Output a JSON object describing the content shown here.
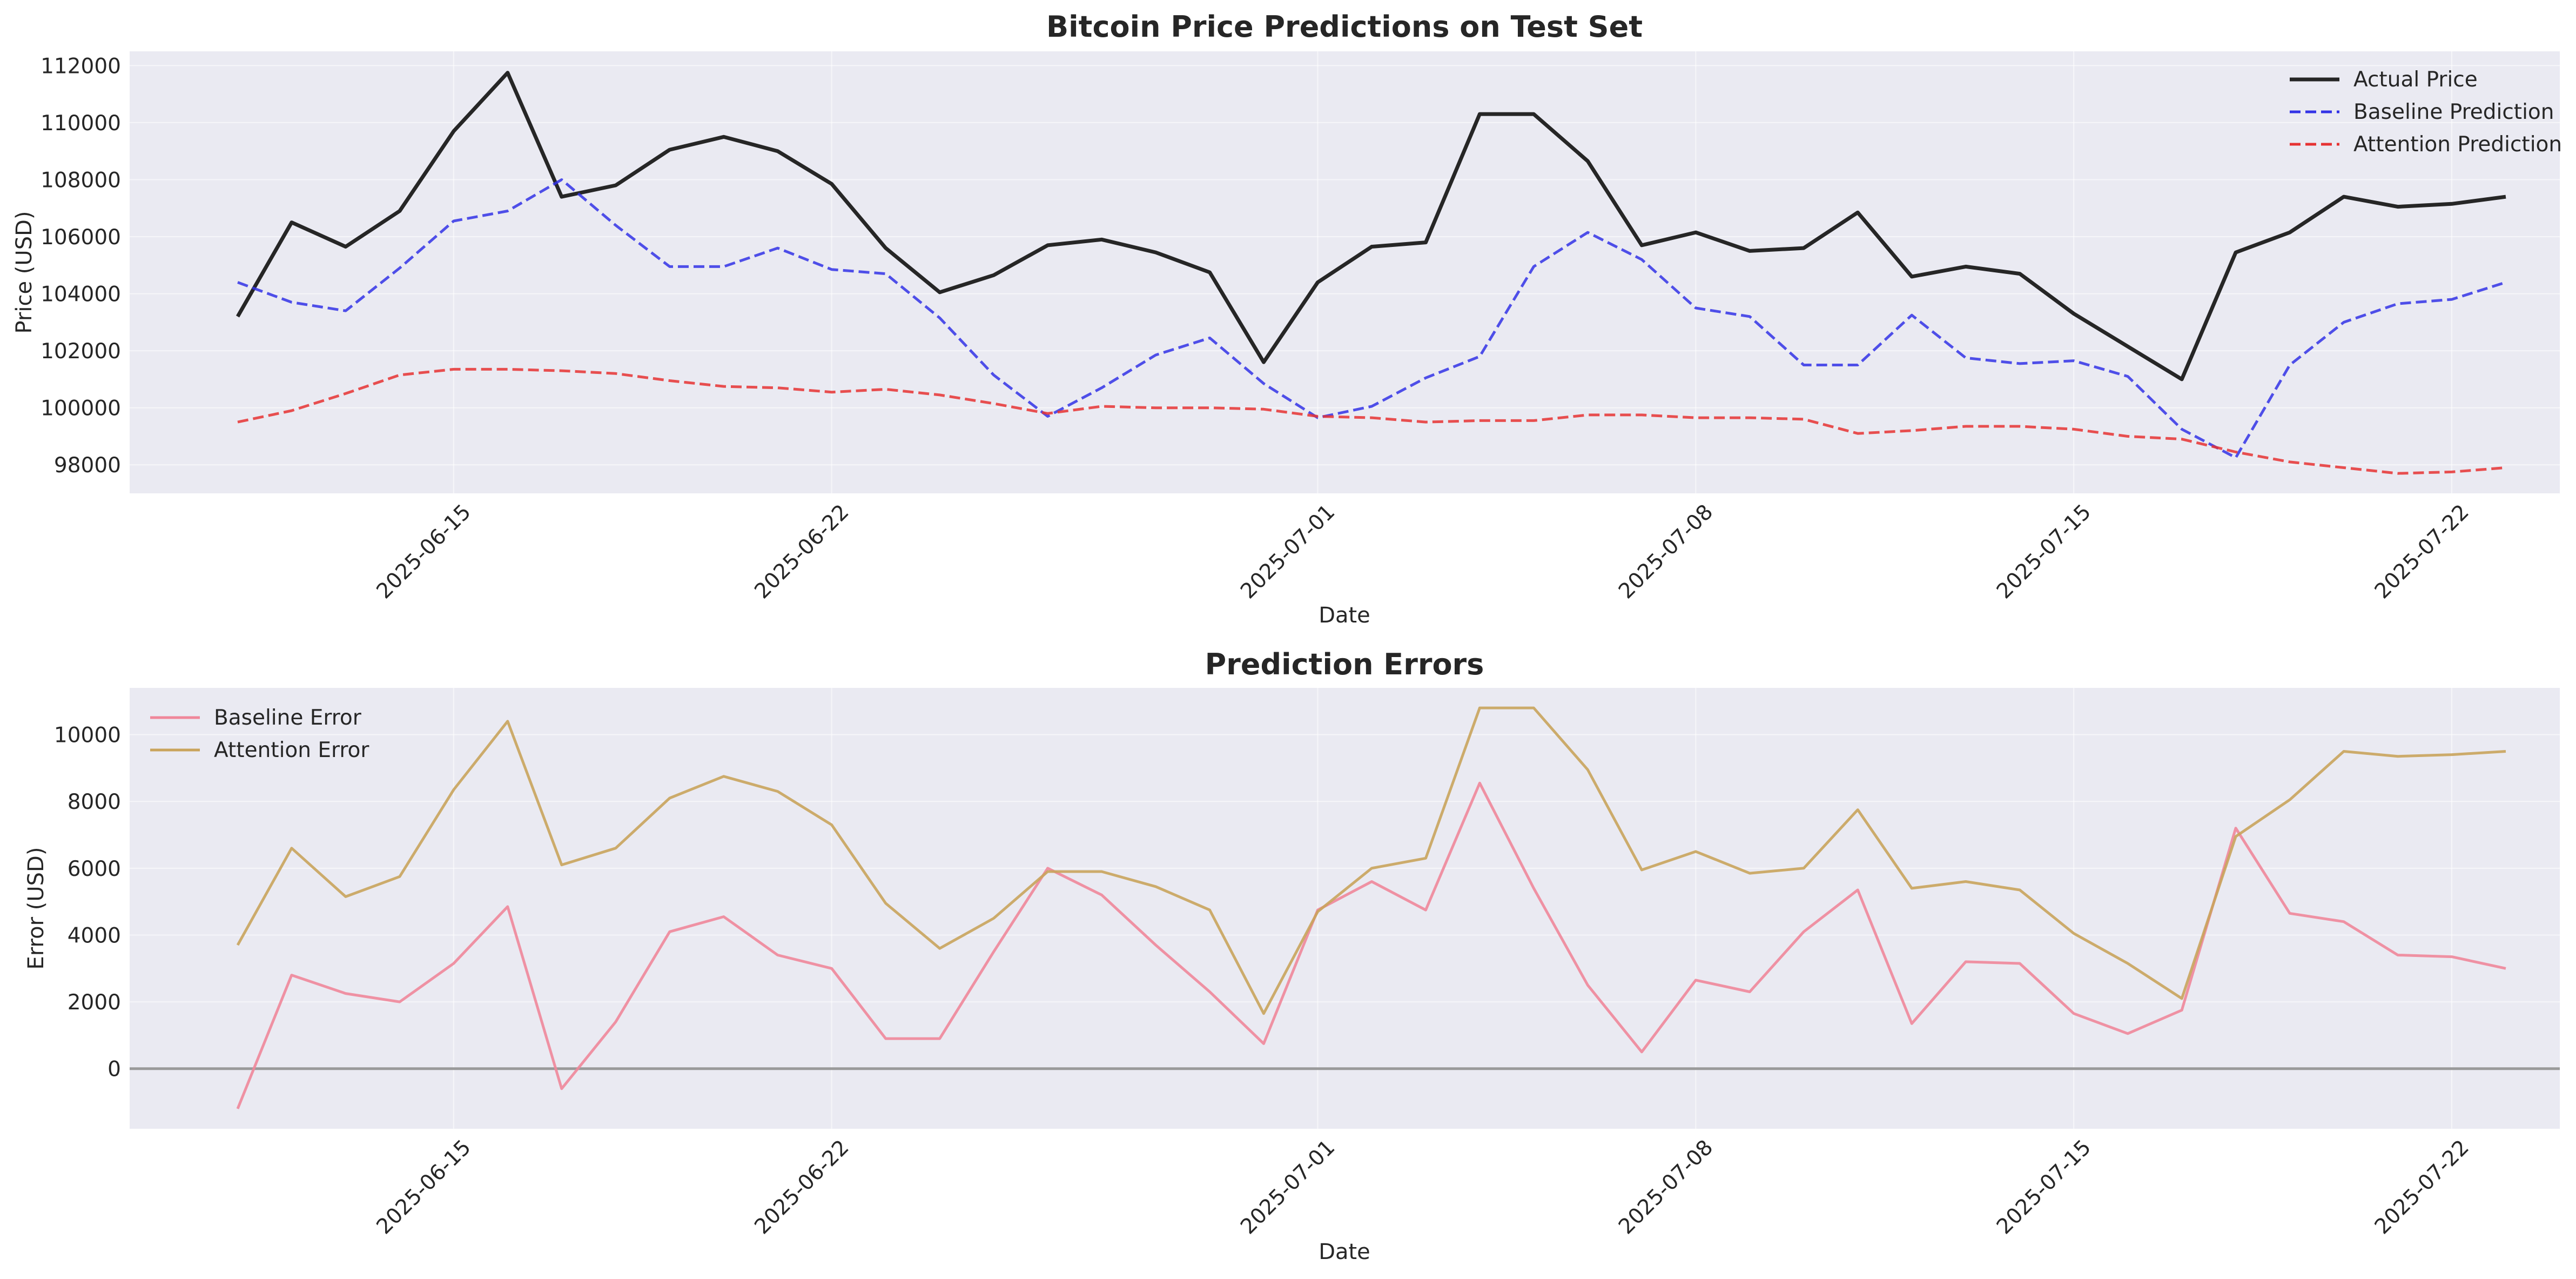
{
  "chart_data": [
    {
      "type": "line",
      "title": "Bitcoin Price Predictions on Test Set",
      "xlabel": "Date",
      "ylabel": "Price (USD)",
      "x_start": "2025-06-11",
      "x_range": [
        "2025-06-09",
        "2025-07-24"
      ],
      "ylim": [
        97000,
        112500
      ],
      "yticks": [
        98000,
        100000,
        102000,
        104000,
        106000,
        108000,
        110000,
        112000
      ],
      "yticks_labels": [
        "98000",
        "100000",
        "102000",
        "104000",
        "106000",
        "108000",
        "110000",
        "112000"
      ],
      "xticks": [
        "2025-06-15",
        "2025-06-22",
        "2025-07-01",
        "2025-07-08",
        "2025-07-15",
        "2025-07-22"
      ],
      "grid": true,
      "legend_position": "top-right",
      "series": [
        {
          "name": "Actual Price",
          "color": "#262626",
          "style": "solid",
          "values": [
            103200,
            106500,
            105650,
            106900,
            109700,
            111750,
            107400,
            107800,
            109050,
            109500,
            109000,
            107850,
            105600,
            104050,
            104650,
            105700,
            105900,
            105450,
            104750,
            101600,
            104400,
            105650,
            105800,
            110300,
            110300,
            108650,
            105700,
            106150,
            105500,
            105600,
            106850,
            104600,
            104950,
            104700,
            103300,
            102150,
            101000,
            105450,
            106150,
            107400,
            107050,
            107150,
            107400
          ]
        },
        {
          "name": "Baseline Prediction",
          "color": "#3333e6",
          "style": "dashed",
          "values": [
            104400,
            103700,
            103400,
            104900,
            106550,
            106900,
            108000,
            106400,
            104950,
            104950,
            105600,
            104850,
            104700,
            103150,
            101150,
            99700,
            100700,
            101850,
            102450,
            100850,
            99650,
            100050,
            101050,
            101800,
            104950,
            106150,
            105200,
            103500,
            103200,
            101500,
            101500,
            103250,
            101750,
            101550,
            101650,
            101100,
            99250,
            98250,
            101500,
            103000,
            103650,
            103800,
            104400
          ]
        },
        {
          "name": "Attention Prediction",
          "color": "#e63333",
          "style": "dashed",
          "values": [
            99500,
            99900,
            100500,
            101150,
            101350,
            101350,
            101300,
            101200,
            100950,
            100750,
            100700,
            100550,
            100650,
            100450,
            100150,
            99800,
            100050,
            100000,
            100000,
            99950,
            99700,
            99650,
            99500,
            99550,
            99550,
            99750,
            99750,
            99650,
            99650,
            99600,
            99100,
            99200,
            99350,
            99350,
            99250,
            99000,
            98900,
            98450,
            98100,
            97900,
            97700,
            97750,
            97900
          ]
        }
      ]
    },
    {
      "type": "line",
      "title": "Prediction Errors",
      "xlabel": "Date",
      "ylabel": "Error (USD)",
      "x_start": "2025-06-11",
      "x_range": [
        "2025-06-09",
        "2025-07-24"
      ],
      "ylim": [
        -1800,
        11400
      ],
      "yticks": [
        0,
        2000,
        4000,
        6000,
        8000,
        10000
      ],
      "yticks_labels": [
        "0",
        "2000",
        "4000",
        "6000",
        "8000",
        "10000"
      ],
      "xticks": [
        "2025-06-15",
        "2025-06-22",
        "2025-07-01",
        "2025-07-08",
        "2025-07-15",
        "2025-07-22"
      ],
      "grid": true,
      "zero_line": true,
      "legend_position": "top-left",
      "series": [
        {
          "name": "Baseline Error",
          "color": "#f0879a",
          "style": "solid",
          "values": [
            -1200,
            2800,
            2250,
            2000,
            3150,
            4850,
            -600,
            1400,
            4100,
            4550,
            3400,
            3000,
            900,
            900,
            3500,
            6000,
            5200,
            3700,
            2300,
            750,
            4750,
            5600,
            4750,
            8550,
            5400,
            2500,
            500,
            2650,
            2300,
            4100,
            5350,
            1350,
            3200,
            3150,
            1650,
            1050,
            1750,
            7200,
            4650,
            4400,
            3400,
            3350,
            3000
          ]
        },
        {
          "name": "Attention Error",
          "color": "#c9a45c",
          "style": "solid",
          "values": [
            3700,
            6600,
            5150,
            5750,
            8350,
            10400,
            6100,
            6600,
            8100,
            8750,
            8300,
            7300,
            4950,
            3600,
            4500,
            5900,
            5900,
            5450,
            4750,
            1650,
            4700,
            6000,
            6300,
            10800,
            10800,
            8950,
            5950,
            6500,
            5850,
            6000,
            7750,
            5400,
            5600,
            5350,
            4050,
            3150,
            2100,
            6950,
            8050,
            9500,
            9350,
            9400,
            9500
          ]
        }
      ]
    }
  ]
}
